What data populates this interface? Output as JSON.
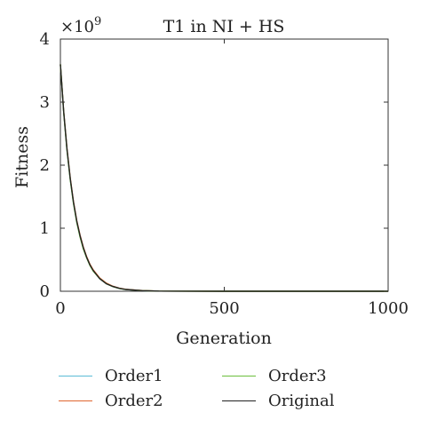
{
  "chart_data": {
    "type": "line",
    "title": "T1 in NI + HS",
    "xlabel": "Generation",
    "ylabel": "Fitness",
    "y_multiplier": "×10",
    "y_exponent": "9",
    "xlim": [
      0,
      1000
    ],
    "ylim": [
      0,
      4
    ],
    "xticks": [
      "0",
      "500",
      "1000"
    ],
    "yticks": [
      "0",
      "1",
      "2",
      "3",
      "4"
    ],
    "x": [
      0,
      10,
      20,
      30,
      40,
      50,
      60,
      70,
      80,
      90,
      100,
      120,
      140,
      160,
      180,
      200,
      250,
      300,
      400,
      500,
      600,
      700,
      800,
      900,
      1000
    ],
    "series": [
      {
        "name": "Order1",
        "color": "#5bbcd6",
        "values": [
          3.6,
          2.85,
          2.25,
          1.78,
          1.4,
          1.1,
          0.87,
          0.68,
          0.54,
          0.42,
          0.33,
          0.2,
          0.12,
          0.075,
          0.045,
          0.028,
          0.01,
          0.003,
          0.001,
          0.0,
          0.0,
          0.0,
          0.0,
          0.0,
          0.0
        ]
      },
      {
        "name": "Order2",
        "color": "#e0662f",
        "values": [
          3.6,
          2.86,
          2.27,
          1.8,
          1.42,
          1.12,
          0.89,
          0.7,
          0.55,
          0.43,
          0.34,
          0.21,
          0.13,
          0.08,
          0.048,
          0.03,
          0.011,
          0.003,
          0.001,
          0.0,
          0.0,
          0.0,
          0.0,
          0.0,
          0.0
        ]
      },
      {
        "name": "Order3",
        "color": "#6cbf3c",
        "values": [
          3.6,
          2.84,
          2.24,
          1.77,
          1.39,
          1.09,
          0.86,
          0.67,
          0.53,
          0.41,
          0.32,
          0.2,
          0.12,
          0.074,
          0.044,
          0.027,
          0.01,
          0.003,
          0.001,
          0.0,
          0.0,
          0.0,
          0.0,
          0.0,
          0.0
        ]
      },
      {
        "name": "Original",
        "color": "#222222",
        "values": [
          3.6,
          2.85,
          2.26,
          1.79,
          1.41,
          1.11,
          0.88,
          0.69,
          0.54,
          0.42,
          0.33,
          0.2,
          0.12,
          0.076,
          0.046,
          0.028,
          0.01,
          0.003,
          0.001,
          0.0,
          0.0,
          0.0,
          0.0,
          0.0,
          0.0
        ]
      }
    ],
    "grid": false,
    "legend_position": "bottom"
  }
}
